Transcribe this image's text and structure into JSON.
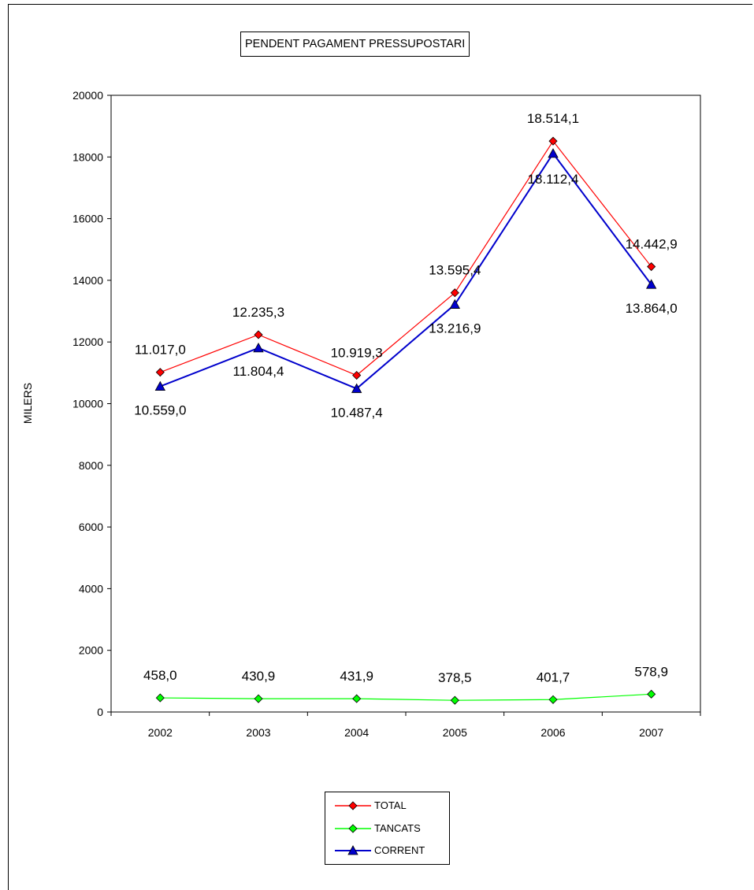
{
  "chart_data": {
    "type": "line",
    "title": "PENDENT PAGAMENT PRESSUPOSTARI",
    "xlabel": "",
    "ylabel": "MILERS",
    "categories": [
      "2002",
      "2003",
      "2004",
      "2005",
      "2006",
      "2007"
    ],
    "ylim": [
      0,
      20000
    ],
    "yticks": [
      "0",
      "2000",
      "4000",
      "6000",
      "8000",
      "10000",
      "12000",
      "14000",
      "16000",
      "18000",
      "20000"
    ],
    "grid": false,
    "legend_position": "bottom",
    "series": [
      {
        "name": "TOTAL",
        "values": [
          11017.0,
          12235.3,
          10919.3,
          13595.4,
          18514.1,
          14442.9
        ],
        "labels": [
          "11.017,0",
          "12.235,3",
          "10.919,3",
          "13.595,4",
          "18.514,1",
          "14.442,9"
        ],
        "color": "#ff0000",
        "marker": "diamond",
        "marker_fill": "#ff0000"
      },
      {
        "name": "TANCATS",
        "values": [
          458.0,
          430.9,
          431.9,
          378.5,
          401.7,
          578.9
        ],
        "labels": [
          "458,0",
          "430,9",
          "431,9",
          "378,5",
          "401,7",
          "578,9"
        ],
        "color": "#00ff00",
        "marker": "diamond",
        "marker_fill": "#00ff00"
      },
      {
        "name": "CORRENT",
        "values": [
          10559.0,
          11804.4,
          10487.4,
          13216.9,
          18112.4,
          13864.0
        ],
        "labels": [
          "10.559,0",
          "11.804,4",
          "10.487,4",
          "13.216,9",
          "18.112,4",
          "13.864,0"
        ],
        "color": "#0000cc",
        "marker": "triangle",
        "marker_fill": "#0000cc"
      }
    ]
  }
}
